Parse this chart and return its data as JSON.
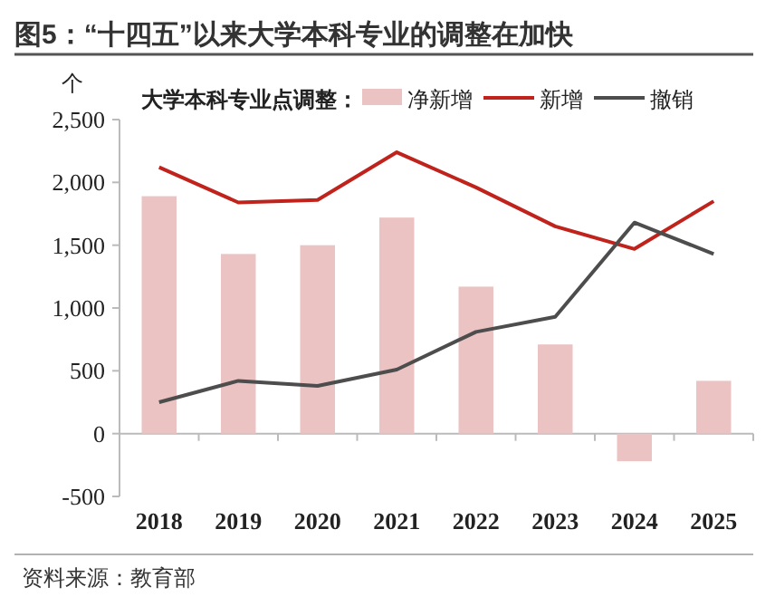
{
  "chart_data": {
    "type": "bar",
    "title": "图5：“十四五”以来大学本科专业的调整在加快",
    "ylabel": "个",
    "legend_title": "大学本科专业点调整：",
    "annotations": [
      "资料来源：教育部"
    ],
    "categories": [
      "2018",
      "2019",
      "2020",
      "2021",
      "2022",
      "2023",
      "2024",
      "2025"
    ],
    "series": [
      {
        "name": "净新增",
        "color": "#ebc3c3",
        "values": [
          1890,
          1430,
          1500,
          1720,
          1170,
          710,
          -220,
          420
        ]
      },
      {
        "name": "新增",
        "type": "line",
        "color": "#c0231c",
        "values": [
          2120,
          1840,
          1860,
          2240,
          1960,
          1650,
          1470,
          1850
        ]
      },
      {
        "name": "撤销",
        "type": "line",
        "color": "#4d4d4d",
        "values": [
          250,
          420,
          380,
          510,
          810,
          930,
          1680,
          1430
        ]
      }
    ],
    "ylim": [
      -500,
      2500
    ],
    "yticks": [
      {
        "value": -500,
        "label": "-500"
      },
      0,
      {
        "value": 500,
        "label": "500"
      },
      {
        "value": 1000,
        "label": "1,000"
      },
      {
        "value": 1500,
        "label": "1,500"
      },
      {
        "value": 2000,
        "label": "2,000"
      },
      {
        "value": 2500,
        "label": "2,500"
      }
    ],
    "legend": "top",
    "marker": "none",
    "line_style": "solid"
  }
}
